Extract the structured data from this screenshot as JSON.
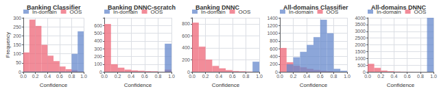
{
  "chart_data": [
    {
      "type": "histogram",
      "title": "Banking Classifier",
      "xlabel": "Confidence",
      "ylabel": "Frequency",
      "bins": [
        0.0,
        0.1,
        0.2,
        0.3,
        0.4,
        0.5,
        0.6,
        0.7,
        0.8,
        0.9,
        1.0
      ],
      "series": [
        {
          "name": "OOS",
          "color": "#ee6677",
          "values": [
            108,
            290,
            255,
            150,
            90,
            60,
            30,
            15,
            10,
            2
          ]
        },
        {
          "name": "In-domain",
          "color": "#6688cc",
          "values": [
            2,
            2,
            2,
            2,
            2,
            2,
            2,
            2,
            100,
            225
          ]
        }
      ],
      "xlim": [
        0.0,
        1.0
      ],
      "xticks": [
        {
          "value": 0.0,
          "label": "0.0"
        },
        0.2,
        0.4,
        0.6,
        0.8,
        {
          "value": 1.0,
          "label": "1.0"
        }
      ],
      "ylim": [
        0,
        300
      ],
      "yticks": [
        0,
        50,
        100,
        150,
        200,
        250,
        300
      ],
      "grid": true,
      "legend": "upper left"
    },
    {
      "type": "histogram",
      "title": "Banking DNNC-scratch",
      "xlabel": "Confidence",
      "bins": [
        0.0,
        0.1,
        0.2,
        0.3,
        0.4,
        0.5,
        0.6,
        0.7,
        0.8,
        0.9,
        1.0
      ],
      "series": [
        {
          "name": "OOS",
          "color": "#ee6677",
          "values": [
            620,
            100,
            55,
            30,
            20,
            15,
            10,
            8,
            2,
            30
          ]
        },
        {
          "name": "In-domain",
          "color": "#6688cc",
          "values": [
            2,
            2,
            2,
            2,
            2,
            2,
            2,
            2,
            2,
            365
          ]
        }
      ],
      "xlim": [
        0.0,
        1.0
      ],
      "xticks": [
        {
          "value": 0.0,
          "label": "0.0"
        },
        0.2,
        0.4,
        0.6,
        0.8,
        {
          "value": 1.0,
          "label": "1.0"
        }
      ],
      "ylim": [
        0,
        700
      ],
      "yticks": [
        0,
        100,
        200,
        300,
        400,
        500,
        600
      ],
      "grid": true,
      "legend": "upper left"
    },
    {
      "type": "histogram",
      "title": "Banking DNNC",
      "xlabel": "Confidence",
      "bins": [
        0.0,
        0.1,
        0.2,
        0.3,
        0.4,
        0.5,
        0.6,
        0.7,
        0.8,
        0.9,
        1.0
      ],
      "series": [
        {
          "name": "OOS",
          "color": "#ee6677",
          "values": [
            820,
            420,
            205,
            100,
            60,
            30,
            15,
            10,
            5,
            2
          ]
        },
        {
          "name": "In-domain",
          "color": "#6688cc",
          "values": [
            2,
            2,
            2,
            2,
            2,
            2,
            2,
            2,
            2,
            170
          ]
        }
      ],
      "xlim": [
        0.0,
        1.0
      ],
      "xticks": [
        {
          "value": 0.0,
          "label": "0.0"
        },
        0.2,
        0.4,
        0.6,
        0.8,
        {
          "value": 1.0,
          "label": "1.0"
        }
      ],
      "ylim": [
        0,
        900
      ],
      "yticks": [
        0,
        200,
        400,
        600,
        800
      ],
      "grid": true,
      "legend": "upper left"
    },
    {
      "type": "histogram",
      "title": "All-domains Classifier",
      "xlabel": "Confidence",
      "bins": [
        0.0,
        0.1,
        0.2,
        0.3,
        0.4,
        0.5,
        0.6,
        0.7,
        0.8,
        0.9,
        1.0
      ],
      "series": [
        {
          "name": "OOS",
          "color": "#ee6677",
          "values": [
            620,
            250,
            160,
            120,
            80,
            50,
            30,
            20,
            5,
            2
          ]
        },
        {
          "name": "In-domain",
          "color": "#6688cc",
          "values": [
            2,
            200,
            380,
            520,
            700,
            900,
            1350,
            1000,
            80,
            30
          ]
        }
      ],
      "xlim": [
        0.0,
        1.0
      ],
      "xticks": [
        {
          "value": 0.0,
          "label": "0.0"
        },
        0.2,
        0.4,
        0.6,
        0.8,
        {
          "value": 1.0,
          "label": "1.0"
        }
      ],
      "ylim": [
        0,
        1400
      ],
      "yticks": [
        0,
        200,
        400,
        600,
        800,
        1000,
        1200,
        1400
      ],
      "grid": true,
      "legend": "upper left"
    },
    {
      "type": "histogram",
      "title": "All-domains DNNC",
      "xlabel": "Confidence",
      "bins": [
        0.0,
        0.1,
        0.2,
        0.3,
        0.4,
        0.5,
        0.6,
        0.7,
        0.8,
        0.9,
        1.0
      ],
      "series": [
        {
          "name": "OOS",
          "color": "#ee6677",
          "values": [
            600,
            300,
            100,
            50,
            25,
            15,
            10,
            8,
            5,
            2
          ]
        },
        {
          "name": "In-domain",
          "color": "#6688cc",
          "values": [
            2,
            2,
            2,
            2,
            2,
            2,
            2,
            2,
            2,
            4000
          ]
        }
      ],
      "xlim": [
        0.0,
        1.0
      ],
      "xticks": [
        {
          "value": 0.0,
          "label": "0.0"
        },
        0.2,
        0.4,
        0.6,
        0.8,
        {
          "value": 1.0,
          "label": "1.0"
        }
      ],
      "ylim": [
        0,
        4000
      ],
      "yticks": [
        0,
        500,
        1000,
        1500,
        2000,
        2500,
        3000,
        3500,
        4000
      ],
      "grid": true,
      "legend": "upper left"
    }
  ]
}
